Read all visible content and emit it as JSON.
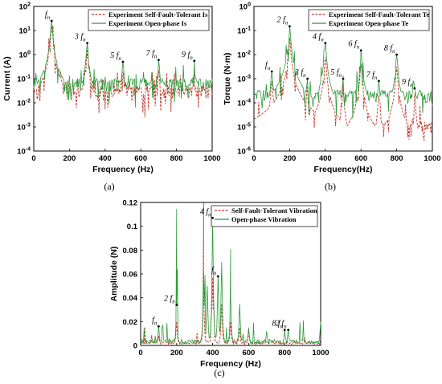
{
  "chart_data": [
    {
      "id": "a",
      "type": "line",
      "panel_label": "(a)",
      "xlabel": "Frequency  (Hz)",
      "ylabel": "Current  (A)",
      "xlim": [
        0,
        1000
      ],
      "ylim_log10": [
        -4,
        2
      ],
      "yscale": "log",
      "xticks": [
        "0",
        "200",
        "400",
        "600",
        "800",
        "1000"
      ],
      "yticks": [
        "10-4",
        "10-3",
        "10-2",
        "10-1",
        "100",
        "101",
        "102"
      ],
      "legend_position": "top-right",
      "series": [
        {
          "name": "Experiment  Self-Fault-Tolerant  Is",
          "style": "dashed",
          "color": "#c0392b",
          "peaks": [
            [
              100,
              15
            ],
            [
              300,
              2
            ],
            [
              500,
              0.2
            ],
            [
              700,
              0.22
            ],
            [
              900,
              0.2
            ]
          ],
          "floor": 0.03
        },
        {
          "name": "Experiment  Open-phase    Is",
          "style": "solid",
          "color": "#2e9a3a",
          "peaks": [
            [
              100,
              25
            ],
            [
              300,
              3
            ],
            [
              500,
              0.5
            ],
            [
              700,
              0.6
            ],
            [
              900,
              0.55
            ]
          ],
          "floor": 0.06
        }
      ],
      "annotations": [
        {
          "text": "f",
          "sub": "n",
          "x": 100,
          "y": 25
        },
        {
          "text": "3 f",
          "sub": "n",
          "x": 300,
          "y": 3
        },
        {
          "text": "5 f",
          "sub": "n",
          "x": 500,
          "y": 0.5
        },
        {
          "text": "7 f",
          "sub": "n",
          "x": 700,
          "y": 0.6
        },
        {
          "text": "9 f",
          "sub": "n",
          "x": 900,
          "y": 0.55
        }
      ]
    },
    {
      "id": "b",
      "type": "line",
      "panel_label": "(b)",
      "xlabel": "Frequency(Hz)",
      "ylabel": "Torque  (N·m)",
      "xlim": [
        0,
        1000
      ],
      "ylim_log10": [
        -6,
        0
      ],
      "yscale": "log",
      "xticks": [
        "0",
        "200",
        "400",
        "600",
        "800",
        "1000"
      ],
      "yticks": [
        "10-6",
        "10-5",
        "10-4",
        "10-3",
        "10-2",
        "10-1",
        "100"
      ],
      "legend_position": "top-right",
      "series": [
        {
          "name": "Experiment  Self-Fault-Tolerant  Te",
          "style": "dashed",
          "color": "#c0392b",
          "peaks": [
            [
              100,
              0.0008
            ],
            [
              200,
              0.05
            ],
            [
              300,
              0.0005
            ],
            [
              400,
              0.008
            ],
            [
              500,
              0.0003
            ],
            [
              600,
              0.004
            ],
            [
              700,
              0.0002
            ],
            [
              800,
              0.003
            ],
            [
              900,
              0.0002
            ]
          ],
          "floor": 1e-05
        },
        {
          "name": "Experiment  Open-phase  Te",
          "style": "solid",
          "color": "#2e9a3a",
          "peaks": [
            [
              100,
              0.002
            ],
            [
              200,
              0.15
            ],
            [
              300,
              0.001
            ],
            [
              400,
              0.03
            ],
            [
              500,
              0.001
            ],
            [
              600,
              0.015
            ],
            [
              700,
              0.0008
            ],
            [
              800,
              0.01
            ],
            [
              900,
              0.0004
            ]
          ],
          "floor": 0.0002
        }
      ],
      "annotations": [
        {
          "text": "f",
          "sub": "n",
          "x": 100,
          "y": 0.002
        },
        {
          "text": "2 f",
          "sub": "n",
          "x": 200,
          "y": 0.15
        },
        {
          "text": "3 f",
          "sub": "n",
          "x": 300,
          "y": 0.001
        },
        {
          "text": "4 f",
          "sub": "n",
          "x": 400,
          "y": 0.03
        },
        {
          "text": "5 f",
          "sub": "n",
          "x": 500,
          "y": 0.001
        },
        {
          "text": "6 f",
          "sub": "n",
          "x": 600,
          "y": 0.015
        },
        {
          "text": "7 f",
          "sub": "n",
          "x": 700,
          "y": 0.0008
        },
        {
          "text": "8 f",
          "sub": "n",
          "x": 800,
          "y": 0.01
        },
        {
          "text": "9 f",
          "sub": "n",
          "x": 900,
          "y": 0.0004
        }
      ]
    },
    {
      "id": "c",
      "type": "line",
      "panel_label": "(c)",
      "xlabel": "Frequency  (Hz)",
      "ylabel": "Amplitude  (N)",
      "xlim": [
        0,
        1000
      ],
      "ylim": [
        0,
        0.12
      ],
      "yscale": "linear",
      "xticks": [
        "0",
        "200",
        "400",
        "600",
        "800",
        "1000"
      ],
      "yticks": [
        "0",
        "0.02",
        "0.04",
        "0.06",
        "0.08",
        "0.1",
        "0.12"
      ],
      "legend_position": "top-right",
      "series": [
        {
          "name": "Self-Fault-Tolerant Vibration",
          "style": "dashed",
          "color": "#c0392b",
          "peaks": [
            [
              100,
              0.008
            ],
            [
              200,
              0.02
            ],
            [
              350,
              0.04
            ],
            [
              400,
              0.057
            ],
            [
              450,
              0.035
            ],
            [
              500,
              0.02
            ],
            [
              550,
              0.015
            ],
            [
              600,
              0.012
            ]
          ],
          "floor": 0.002
        },
        {
          "name": "Open-phase Vibration",
          "style": "solid",
          "color": "#2e9a3a",
          "peaks": [
            [
              100,
              0.016
            ],
            [
              200,
              0.034
            ],
            [
              350,
              0.062
            ],
            [
              370,
              0.05
            ],
            [
              400,
              0.107
            ],
            [
              430,
              0.058
            ],
            [
              450,
              0.07
            ],
            [
              500,
              0.04
            ],
            [
              550,
              0.035
            ],
            [
              600,
              0.015
            ],
            [
              700,
              0.012
            ],
            [
              800,
              0.013
            ],
            [
              820,
              0.013
            ],
            [
              1000,
              0.02
            ]
          ],
          "floor": 0.003
        }
      ],
      "annotations": [
        {
          "text": "f",
          "sub": "n",
          "x": 100,
          "y": 0.016
        },
        {
          "text": "2 f",
          "sub": "n",
          "x": 200,
          "y": 0.034
        },
        {
          "text": "4 f",
          "sub": "n",
          "x": 400,
          "y": 0.107
        },
        {
          "text": "f",
          "sub": "n",
          "x": 430,
          "y": 0.058
        },
        {
          "text": "8 f",
          "sub": "n",
          "x": 800,
          "y": 0.013
        },
        {
          "text": "2 f",
          "sub": "n",
          "x": 820,
          "y": 0.013
        }
      ]
    }
  ]
}
